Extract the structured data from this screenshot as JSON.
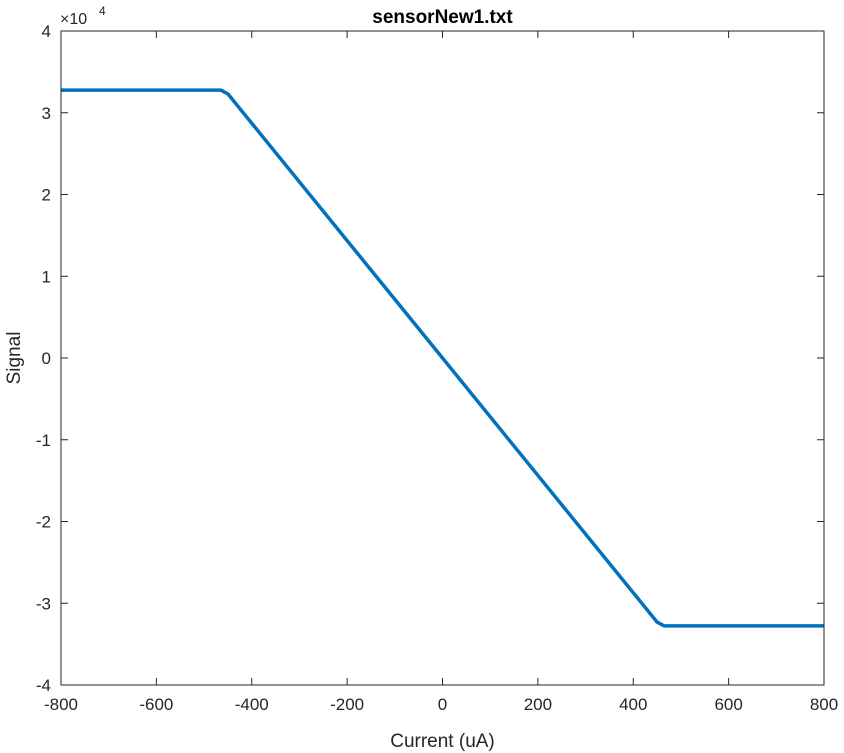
{
  "chart_data": {
    "type": "line",
    "title": "sensorNew1.txt",
    "xlabel": "Current (uA)",
    "ylabel": "Signal",
    "xlim": [
      -800,
      800
    ],
    "ylim": [
      -40000,
      40000
    ],
    "y_exponent_label": "×10",
    "y_exponent_power": "4",
    "x_ticks": [
      -800,
      -600,
      -400,
      -200,
      0,
      200,
      400,
      600,
      800
    ],
    "x_tick_labels": [
      "-800",
      "-600",
      "-400",
      "-200",
      "0",
      "200",
      "400",
      "600",
      "800"
    ],
    "y_ticks": [
      -40000,
      -30000,
      -20000,
      -10000,
      0,
      10000,
      20000,
      30000,
      40000
    ],
    "y_tick_labels": [
      "-4",
      "-3",
      "-2",
      "-1",
      "0",
      "1",
      "2",
      "3",
      "4"
    ],
    "grid": false,
    "box": true,
    "series": [
      {
        "color": "#0072BD",
        "x": [
          -800,
          -465,
          -450,
          450,
          465,
          480,
          800
        ],
        "y": [
          32768,
          32768,
          32300,
          -32300,
          -32768,
          -32768,
          -32768
        ]
      }
    ]
  }
}
